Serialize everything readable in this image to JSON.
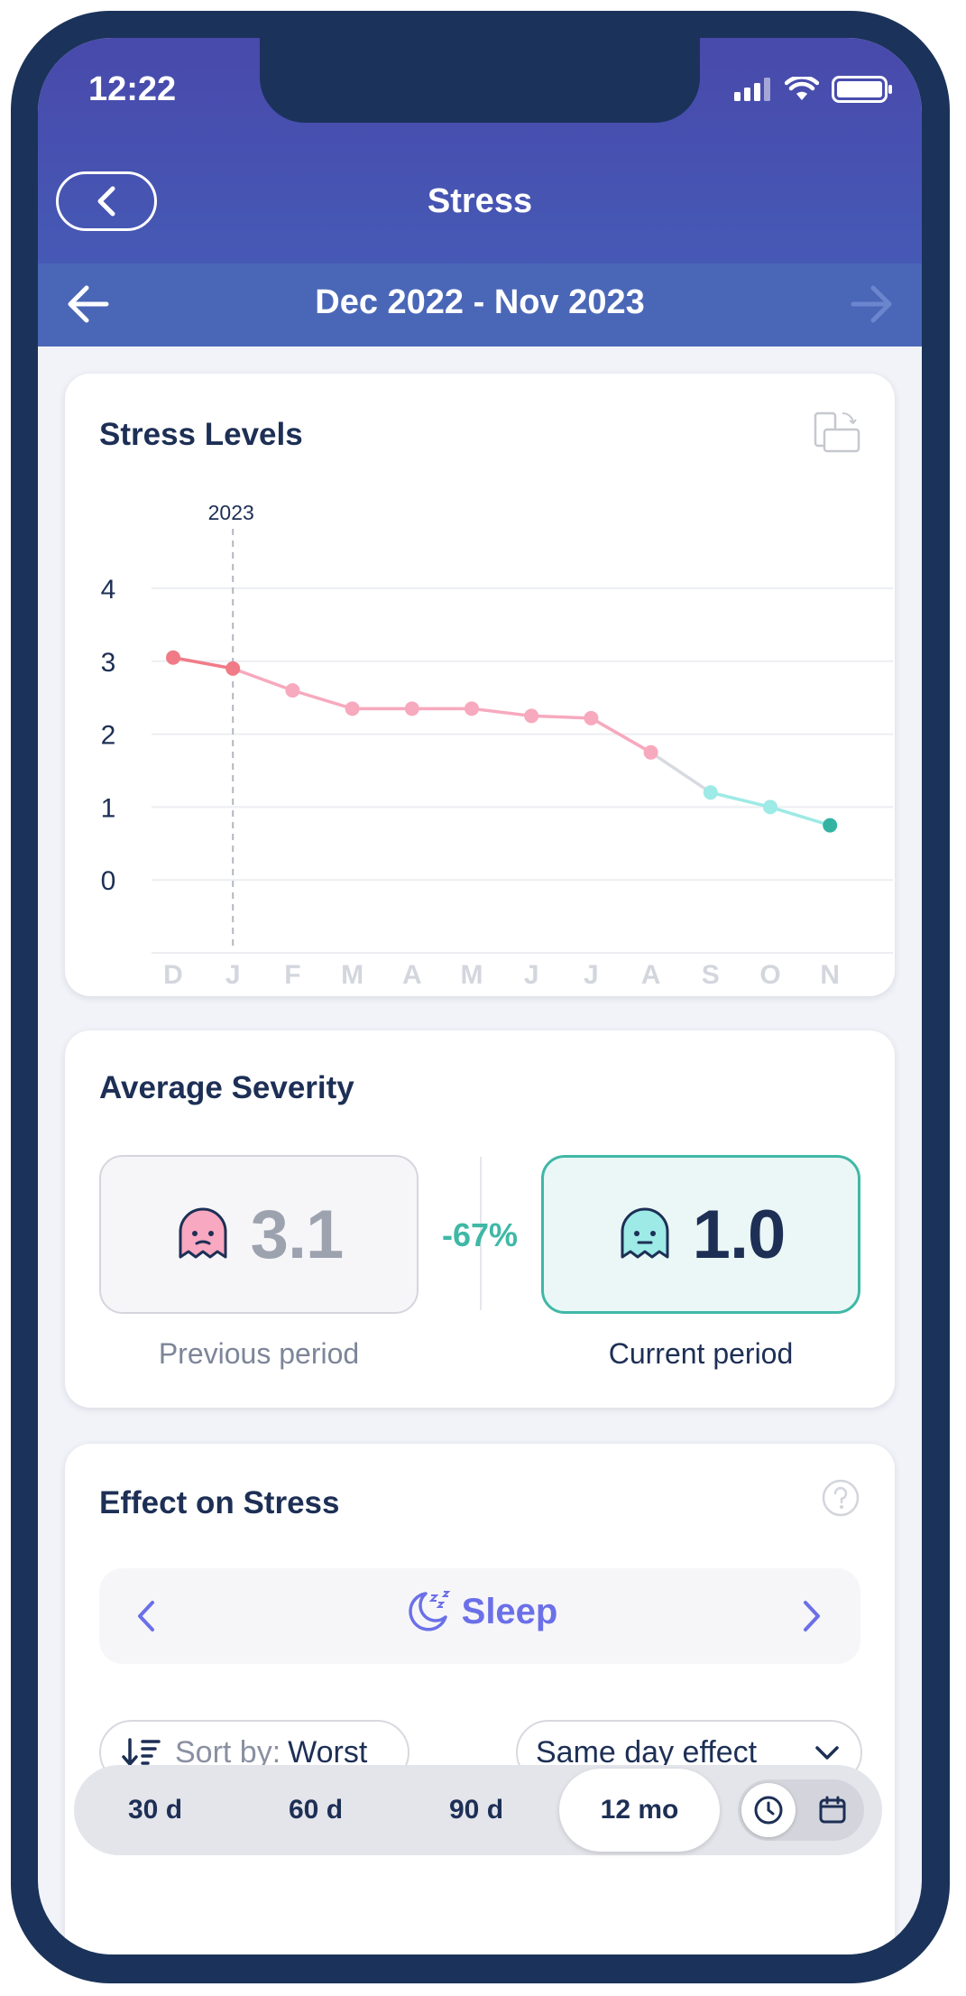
{
  "status_bar": {
    "time": "12:22"
  },
  "header": {
    "title": "Stress"
  },
  "range": {
    "label": "Dec 2022 - Nov 2023"
  },
  "stress_levels": {
    "title": "Stress Levels"
  },
  "chart_data": {
    "type": "line",
    "title": "Stress Levels",
    "categories": [
      "D",
      "J",
      "F",
      "M",
      "A",
      "M",
      "J",
      "J",
      "A",
      "S",
      "O",
      "N"
    ],
    "y_ticks": [
      "4",
      "3",
      "2",
      "1",
      "0"
    ],
    "ylim": [
      -1,
      4
    ],
    "grid": true,
    "annotation": "2023",
    "annotation_at": "J",
    "series": [
      {
        "values": [
          3.05,
          2.9,
          2.6,
          2.35,
          2.35,
          2.35,
          2.25,
          2.22,
          1.75,
          1.2,
          1.0,
          0.75
        ]
      }
    ],
    "colors": {
      "high": "#f07b87",
      "mid": "#f7a9be",
      "low": "#9deae6",
      "lowest": "#34b3a3",
      "transition": "#d8dae1"
    }
  },
  "average_severity": {
    "title": "Average Severity",
    "previous_value": "3.1",
    "previous_label": "Previous period",
    "change": "-67%",
    "current_value": "1.0",
    "current_label": "Current period"
  },
  "effect": {
    "title": "Effect on Stress",
    "factor": "Sleep",
    "sort_prefix": "Sort by:",
    "sort_value": "Worst",
    "effect_option": "Same day effect"
  },
  "period_selector": {
    "options": [
      "30 d",
      "60 d",
      "90 d",
      "12 mo"
    ],
    "selected": "12 mo"
  },
  "colors": {
    "accent": "#3fb8a6",
    "navy": "#1d2f55",
    "header": "#4849ab",
    "factor": "#6b70e8"
  }
}
